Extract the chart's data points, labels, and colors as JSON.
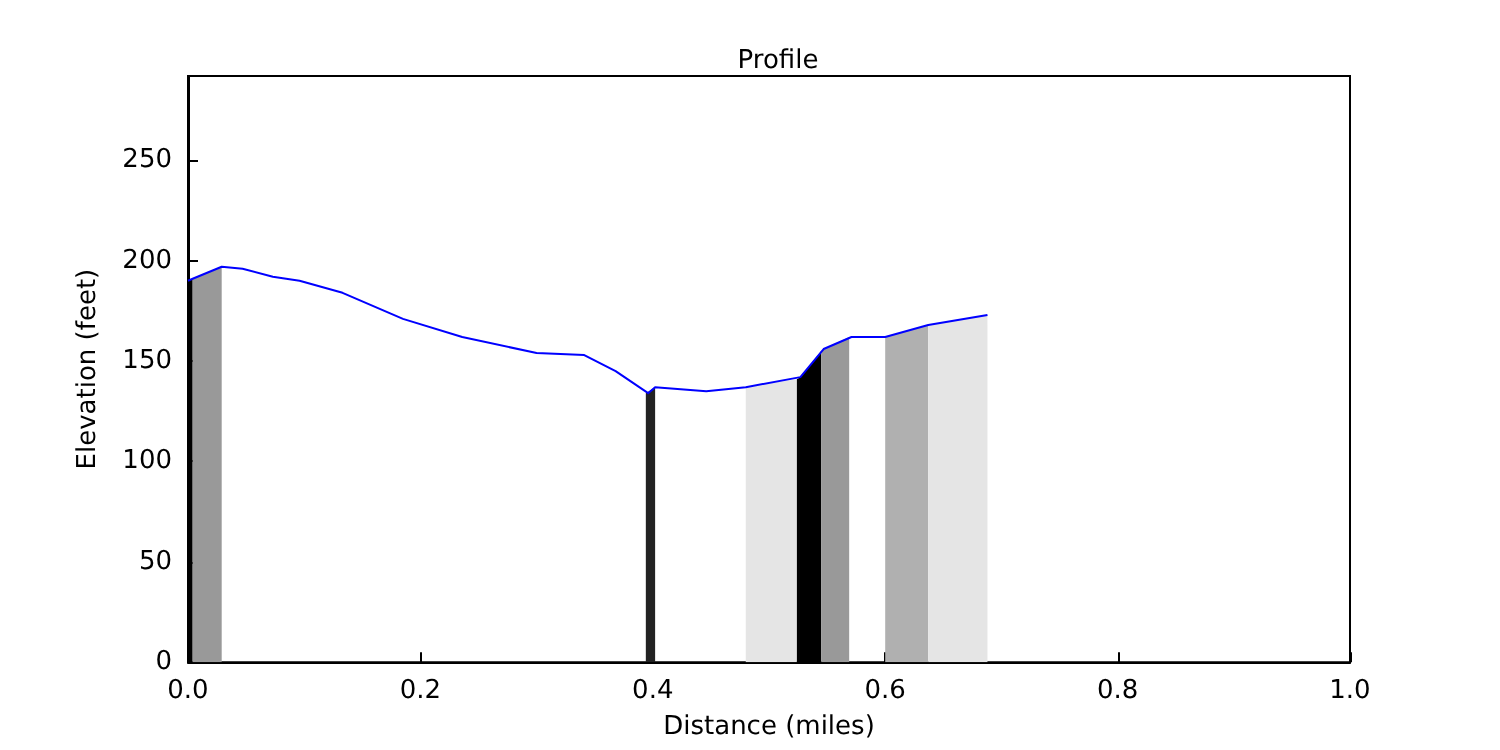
{
  "chart_data": {
    "type": "line",
    "title": "Profile",
    "xlabel": "Distance (miles)",
    "ylabel": "Elevation (feet)",
    "xlim": [
      0,
      1
    ],
    "xticks": [
      {
        "value": 0,
        "label": "0.0"
      },
      {
        "value": 0.2,
        "label": "0.2"
      },
      {
        "value": 0.4,
        "label": "0.4"
      },
      {
        "value": 0.6,
        "label": "0.6"
      },
      {
        "value": 0.8,
        "label": "0.8"
      },
      {
        "value": 1,
        "label": "1.0"
      }
    ],
    "ylim": [
      0,
      292
    ],
    "yticks": [
      0,
      50,
      100,
      150,
      200,
      250
    ],
    "grid": false,
    "marker": "none",
    "line_style": "solid",
    "series": [
      {
        "type": "area",
        "color": "#000000",
        "x": [
          0,
          0.004
        ],
        "values": [
          190,
          191
        ]
      },
      {
        "type": "area",
        "color": "#999999",
        "x": [
          0.004,
          0.029
        ],
        "values": [
          191,
          197
        ]
      },
      {
        "type": "area",
        "color": "#222222",
        "x": [
          0.394,
          0.402
        ],
        "values": [
          134,
          137
        ]
      },
      {
        "type": "area",
        "color": "#e5e5e5",
        "x": [
          0.48,
          0.524
        ],
        "values": [
          137,
          141
        ]
      },
      {
        "type": "area",
        "color": "#000000",
        "x": [
          0.524,
          0.527,
          0.545
        ],
        "values": [
          141,
          142,
          155
        ]
      },
      {
        "type": "area",
        "color": "#999999",
        "x": [
          0.545,
          0.547,
          0.569
        ],
        "values": [
          155,
          156,
          162
        ]
      },
      {
        "type": "area",
        "color": "#b0b0b0",
        "x": [
          0.6,
          0.637
        ],
        "values": [
          162,
          168
        ]
      },
      {
        "type": "area",
        "color": "#e5e5e5",
        "x": [
          0.637,
          0.688
        ],
        "values": [
          168,
          173
        ]
      },
      {
        "color": "#0000ff",
        "x": [
          0,
          0.004,
          0.029,
          0.047,
          0.073,
          0.096,
          0.133,
          0.185,
          0.236,
          0.3,
          0.341,
          0.368,
          0.396,
          0.402,
          0.446,
          0.48,
          0.527,
          0.547,
          0.571,
          0.6,
          0.637,
          0.688
        ],
        "values": [
          190,
          191,
          197,
          196,
          192,
          190,
          184,
          171,
          162,
          154,
          153,
          145,
          134,
          137,
          135,
          137,
          142,
          156,
          162,
          162,
          168,
          173
        ]
      }
    ]
  }
}
